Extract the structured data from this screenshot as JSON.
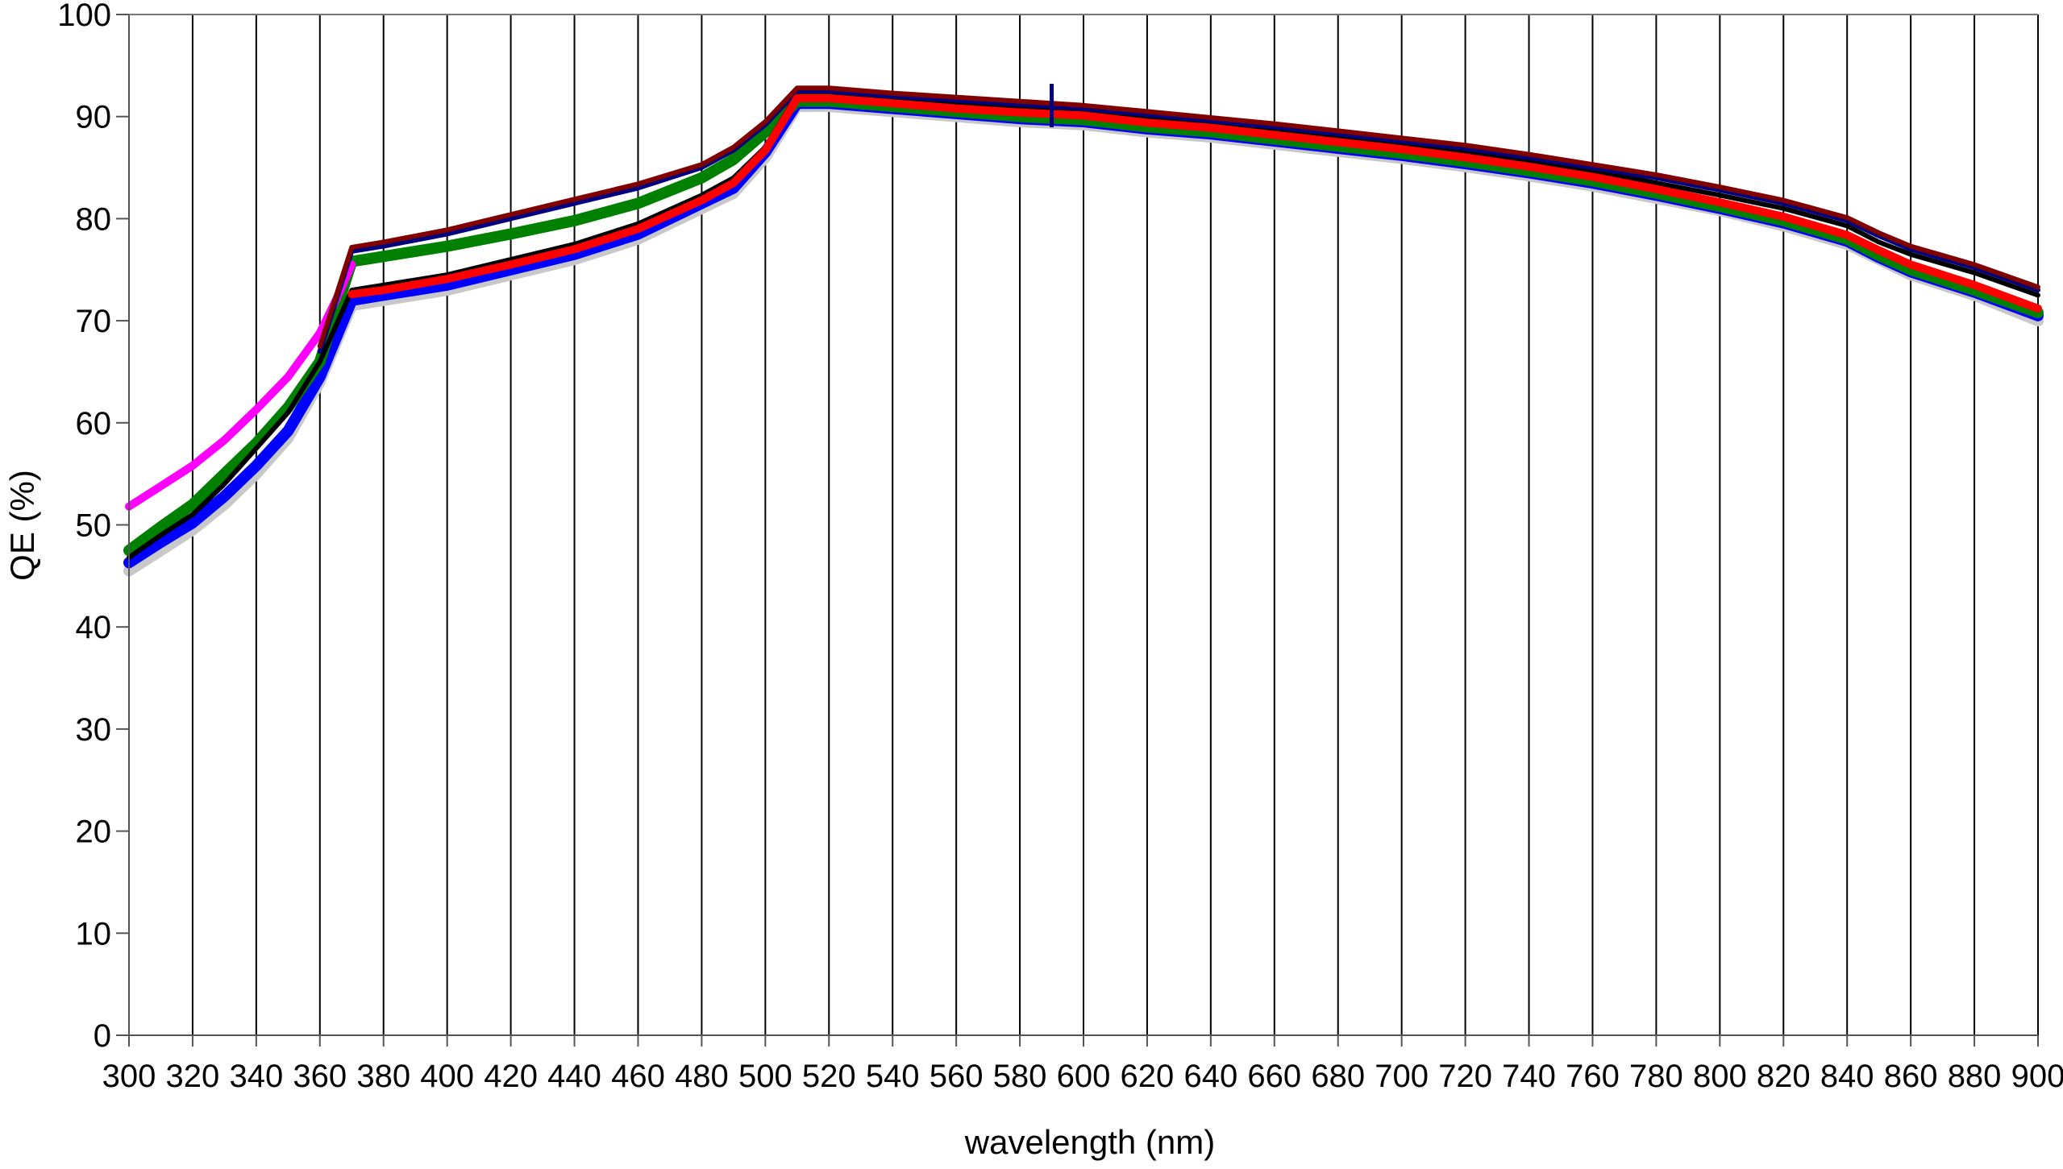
{
  "chart_data": {
    "type": "line",
    "xlabel": "wavelength (nm)",
    "ylabel": "QE (%)",
    "xlim": [
      300,
      900
    ],
    "ylim": [
      0,
      100
    ],
    "x_ticks": [
      300,
      320,
      340,
      360,
      380,
      400,
      420,
      440,
      460,
      480,
      500,
      520,
      540,
      560,
      580,
      600,
      620,
      640,
      660,
      680,
      700,
      720,
      740,
      760,
      780,
      800,
      820,
      840,
      860,
      880,
      900
    ],
    "y_ticks": [
      0,
      10,
      20,
      30,
      40,
      50,
      60,
      70,
      80,
      90,
      100
    ],
    "grid": "vertical",
    "series": [
      {
        "color": "#c8c8c8",
        "x": [
          300,
          310,
          320,
          330,
          340,
          350,
          360,
          370,
          380,
          400,
          420,
          440,
          460,
          480,
          490,
          500,
          510,
          520,
          540,
          560,
          580,
          600,
          620,
          640,
          660,
          680,
          700,
          720,
          740,
          760,
          780,
          800,
          820,
          840,
          850,
          860,
          880,
          900
        ],
        "y": [
          45.5,
          47.5,
          49.5,
          52,
          55,
          58.5,
          64,
          71.5,
          72,
          73,
          74.5,
          76,
          78,
          81,
          82.5,
          86,
          91,
          91,
          90.5,
          90,
          89.5,
          89.2,
          88.5,
          88,
          87.3,
          86.6,
          85.9,
          85.1,
          84.2,
          83.2,
          82,
          80.8,
          79.3,
          77.5,
          76,
          74.5,
          72.5,
          70
        ]
      },
      {
        "color": "#0000ff",
        "x": [
          300,
          310,
          320,
          330,
          340,
          350,
          360,
          370,
          380,
          400,
          420,
          440,
          460,
          480,
          490,
          500,
          510,
          520,
          540,
          560,
          580,
          600,
          620,
          640,
          660,
          680,
          700,
          720,
          740,
          760,
          780,
          800,
          820,
          840,
          850,
          860,
          880,
          900
        ],
        "y": [
          46.3,
          48.3,
          50.2,
          52.8,
          55.8,
          59.2,
          64.5,
          72,
          72.5,
          73.5,
          75,
          76.5,
          78.5,
          81.5,
          83,
          86.5,
          91.3,
          91.3,
          90.8,
          90.3,
          89.8,
          89.5,
          88.8,
          88.3,
          87.6,
          86.9,
          86.2,
          85.4,
          84.5,
          83.5,
          82.3,
          81,
          79.6,
          77.8,
          76.2,
          74.8,
          72.8,
          70.5
        ]
      },
      {
        "color": "#008000",
        "x": [
          300,
          310,
          320,
          330,
          340,
          350,
          360,
          370,
          380,
          400,
          420,
          440,
          460,
          480,
          490,
          500,
          510,
          520,
          540,
          560,
          580,
          600,
          620,
          640,
          660,
          680,
          700,
          720,
          740,
          760,
          780,
          800,
          820,
          840,
          850,
          860,
          880,
          900
        ],
        "y": [
          47.5,
          49.8,
          52,
          55,
          58,
          61.5,
          66,
          75.8,
          76.3,
          77.3,
          78.5,
          79.8,
          81.5,
          84,
          85.8,
          88.5,
          91.5,
          91.5,
          91,
          90.5,
          90,
          89.7,
          89,
          88.5,
          87.8,
          87.1,
          86.4,
          85.6,
          84.7,
          83.7,
          82.5,
          81.2,
          79.8,
          78,
          76.4,
          75,
          73,
          70.8
        ]
      },
      {
        "color": "#000000",
        "x": [
          300,
          310,
          320,
          330,
          340,
          350,
          360,
          370,
          380,
          400,
          420,
          440,
          460,
          480,
          490,
          500,
          510,
          520,
          540,
          560,
          580,
          600,
          620,
          640,
          660,
          680,
          700,
          720,
          740,
          760,
          780,
          800,
          820,
          840,
          850,
          860,
          880,
          900
        ],
        "y": [
          46.8,
          49,
          51,
          54,
          57.5,
          61,
          66,
          73,
          73.5,
          74.5,
          76,
          77.5,
          79.5,
          82.3,
          84,
          87,
          92.2,
          92.2,
          91.7,
          91.2,
          90.8,
          90.5,
          89.8,
          89.3,
          88.6,
          88,
          87.3,
          86.5,
          85.6,
          84.7,
          83.5,
          82.3,
          81,
          79.3,
          77.7,
          76.5,
          74.7,
          72.5
        ]
      },
      {
        "color": "#ff00ff",
        "x": [
          300,
          310,
          320,
          330,
          340,
          350,
          360,
          365,
          370
        ],
        "y": [
          51.8,
          53.8,
          55.8,
          58.3,
          61.3,
          64.5,
          68.8,
          72,
          75.5
        ]
      },
      {
        "color": "#000080",
        "x": [
          360,
          370,
          380,
          400,
          420,
          440,
          460,
          480,
          490,
          500,
          510,
          520,
          540,
          560,
          580,
          600,
          620,
          640,
          660,
          680,
          700,
          720,
          740,
          760,
          780,
          800,
          820,
          840,
          850,
          860,
          880,
          900
        ],
        "y": [
          67,
          76.8,
          77.3,
          78.5,
          80,
          81.5,
          83,
          85,
          86.7,
          89.2,
          92.5,
          92.5,
          92,
          91.6,
          91.2,
          90.8,
          90.2,
          89.6,
          89,
          88.3,
          87.6,
          86.9,
          86,
          85,
          84,
          82.8,
          81.5,
          79.8,
          78.3,
          77,
          75.2,
          73
        ]
      },
      {
        "color": "#800000",
        "x": [
          360,
          370,
          380,
          400,
          420,
          440,
          460,
          480,
          490,
          500,
          510,
          520,
          540,
          560,
          580,
          600,
          620,
          640,
          660,
          680,
          700,
          720,
          740,
          760,
          780,
          800,
          820,
          840,
          850,
          860,
          880,
          900
        ],
        "y": [
          67.5,
          77.2,
          77.7,
          78.9,
          80.4,
          81.9,
          83.4,
          85.3,
          87,
          89.5,
          92.8,
          92.8,
          92.3,
          91.9,
          91.5,
          91.1,
          90.5,
          89.9,
          89.3,
          88.6,
          87.9,
          87.2,
          86.3,
          85.3,
          84.3,
          83.1,
          81.8,
          80.1,
          78.6,
          77.3,
          75.5,
          73.3
        ]
      },
      {
        "color": "#ff0000",
        "x": [
          370,
          380,
          400,
          420,
          440,
          460,
          480,
          490,
          500,
          510,
          520,
          540,
          560,
          580,
          600,
          620,
          640,
          660,
          680,
          700,
          720,
          740,
          760,
          780,
          800,
          820,
          840,
          850,
          860,
          880,
          900
        ],
        "y": [
          72.6,
          73,
          74.1,
          75.5,
          77,
          79,
          81.8,
          83.5,
          86.7,
          91.8,
          91.8,
          91.3,
          90.8,
          90.4,
          90.1,
          89.4,
          88.9,
          88.2,
          87.5,
          86.8,
          86,
          85.1,
          84.1,
          82.9,
          81.6,
          80.2,
          78.4,
          76.9,
          75.5,
          73.5,
          71.2
        ]
      }
    ],
    "annotations": [
      {
        "type": "marker",
        "x": 590,
        "y": 91
      }
    ]
  }
}
